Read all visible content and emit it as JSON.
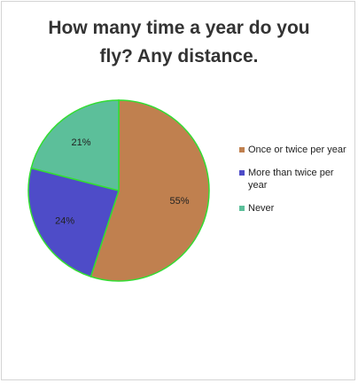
{
  "chart_data": {
    "type": "pie",
    "title_lines": [
      "How many time a year do you",
      "fly?  Any distance."
    ],
    "categories": [
      "Once or twice per year",
      "More than twice per year",
      "Never"
    ],
    "values": [
      55,
      24,
      21
    ],
    "value_labels": [
      "55%",
      "24%",
      "21%"
    ],
    "colors": [
      "#c0804f",
      "#4e4cc8",
      "#5cbf9a"
    ],
    "slice_edge_color": "#33dd33",
    "start_angle_deg": 0,
    "direction": "clockwise",
    "legend_position": "right"
  }
}
